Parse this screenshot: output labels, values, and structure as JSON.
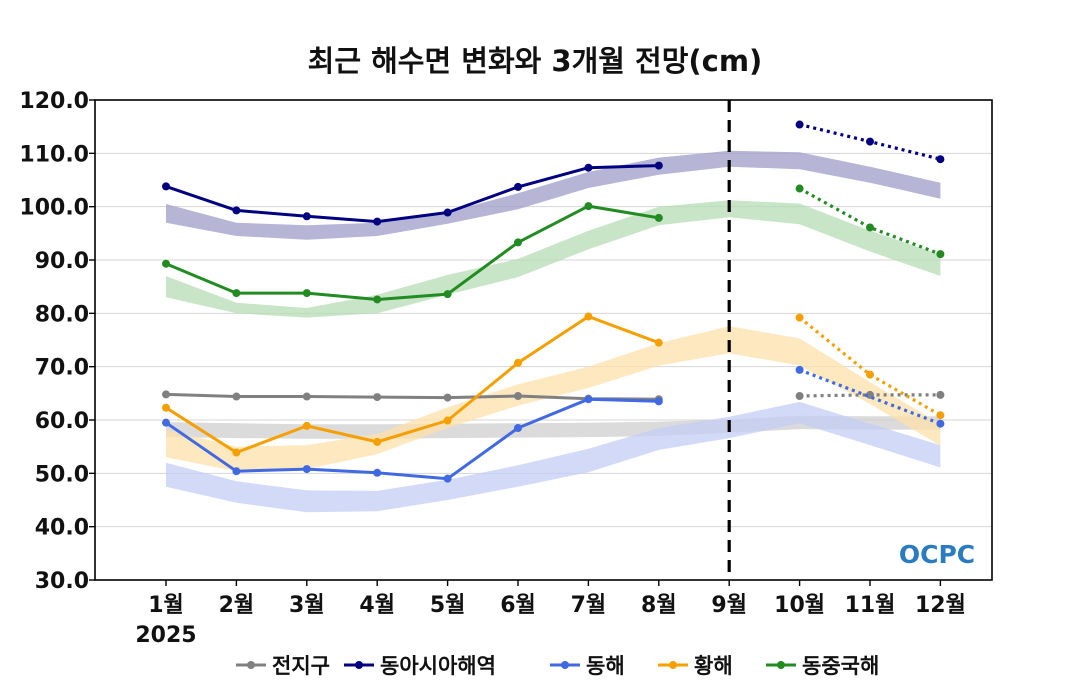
{
  "chart_data": {
    "type": "line",
    "title": "최근 해수면 변화와 3개월 전망(cm)",
    "xlabel": "",
    "ylabel": "",
    "year_label": "2025",
    "categories": [
      "1월",
      "2월",
      "3월",
      "4월",
      "5월",
      "6월",
      "7월",
      "8월",
      "9월",
      "10월",
      "11월",
      "12월"
    ],
    "ylim": [
      30,
      120
    ],
    "yticks": [
      "30.0",
      "40.0",
      "50.0",
      "60.0",
      "70.0",
      "80.0",
      "90.0",
      "100.0",
      "110.0",
      "120.0"
    ],
    "grid": true,
    "forecast_divider_after": "9월",
    "legend_position": "bottom",
    "logo_text": "OCPC",
    "series": [
      {
        "name": "전지구",
        "color": "#808080",
        "band_color": "#cfcfcf",
        "observed": [
          64.8,
          64.4,
          64.4,
          64.3,
          64.2,
          64.5,
          64.0,
          63.9
        ],
        "forecast": {
          "x": [
            "10월",
            "11월",
            "12월"
          ],
          "values": [
            64.5,
            64.7,
            64.7
          ]
        },
        "band": {
          "lower": [
            56.8,
            56.6,
            56.5,
            56.5,
            56.6,
            56.7,
            56.8,
            57.0,
            57.6,
            58.3,
            58.2,
            58.2
          ],
          "upper": [
            59.6,
            59.4,
            59.2,
            59.2,
            59.3,
            59.4,
            59.5,
            59.7,
            60.1,
            60.8,
            60.7,
            60.7
          ]
        }
      },
      {
        "name": "동아시아해역",
        "color": "#000080",
        "band_color": "#9e9cc8",
        "observed": [
          103.8,
          99.3,
          98.2,
          97.2,
          98.9,
          103.7,
          107.3,
          107.7
        ],
        "forecast": {
          "x": [
            "10월",
            "11월",
            "12월"
          ],
          "values": [
            115.4,
            112.2,
            108.9
          ]
        },
        "band": {
          "lower": [
            97.0,
            94.5,
            93.8,
            94.5,
            96.8,
            99.5,
            103.5,
            106.0,
            107.5,
            107.0,
            104.5,
            101.5
          ],
          "upper": [
            100.5,
            97.0,
            96.5,
            97.0,
            99.0,
            102.5,
            106.5,
            109.2,
            110.5,
            110.2,
            107.5,
            104.5
          ]
        }
      },
      {
        "name": "동해",
        "color": "#4169e1",
        "band_color": "#c4cdf6",
        "observed": [
          59.5,
          50.4,
          50.8,
          50.1,
          49.0,
          58.5,
          63.9,
          63.5
        ],
        "forecast": {
          "x": [
            "10월",
            "11월",
            "12월"
          ],
          "values": [
            69.4,
            null,
            59.3
          ]
        },
        "band": {
          "lower": [
            47.5,
            44.5,
            42.7,
            42.9,
            45.0,
            47.5,
            50.2,
            54.4,
            56.6,
            59.4,
            55.3,
            51.1
          ],
          "upper": [
            52.0,
            48.5,
            46.8,
            46.7,
            48.8,
            51.5,
            54.6,
            58.5,
            60.6,
            63.4,
            59.3,
            55.3
          ]
        }
      },
      {
        "name": "황해",
        "color": "#f5a000",
        "band_color": "#fde0ab",
        "observed": [
          62.3,
          53.9,
          58.9,
          55.9,
          59.9,
          70.7,
          79.4,
          74.5
        ],
        "forecast": {
          "x": [
            "10월",
            "11월",
            "12월"
          ],
          "values": [
            79.2,
            68.5,
            60.9
          ]
        },
        "band": {
          "lower": [
            53.0,
            50.4,
            50.8,
            53.6,
            58.5,
            62.7,
            66.0,
            70.2,
            72.5,
            70.2,
            63.0,
            55.2
          ],
          "upper": [
            58.2,
            55.0,
            55.3,
            57.4,
            62.4,
            66.7,
            70.0,
            74.4,
            77.6,
            75.3,
            67.1,
            59.3
          ]
        }
      },
      {
        "name": "동중국해",
        "color": "#228b22",
        "band_color": "#b7dcb5",
        "observed": [
          89.3,
          83.8,
          83.8,
          82.6,
          83.6,
          93.3,
          100.1,
          97.9
        ],
        "forecast": {
          "x": [
            "10월",
            "11월",
            "12월"
          ],
          "values": [
            103.4,
            96.1,
            91.1
          ]
        },
        "band": {
          "lower": [
            83.0,
            80.0,
            79.2,
            80.0,
            83.5,
            86.8,
            92.0,
            96.5,
            98.0,
            96.7,
            91.6,
            87.0
          ],
          "upper": [
            87.0,
            82.0,
            81.0,
            83.5,
            87.2,
            90.2,
            95.5,
            100.0,
            101.2,
            100.6,
            95.5,
            91.0
          ]
        }
      }
    ]
  }
}
